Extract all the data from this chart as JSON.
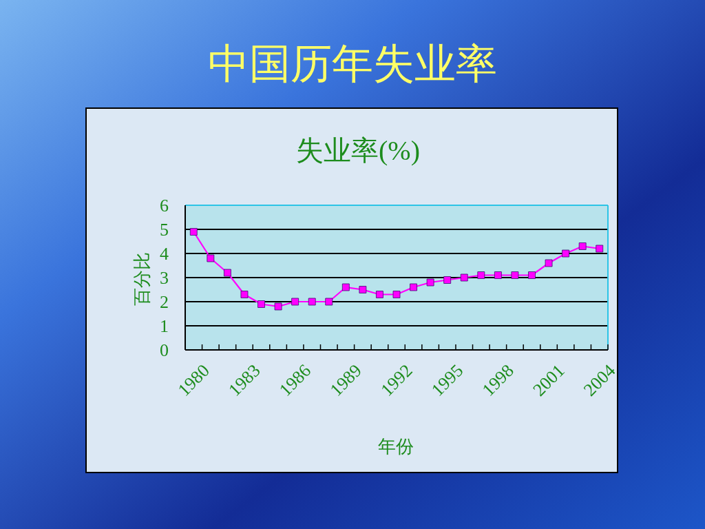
{
  "chart_data": {
    "type": "line",
    "title": "中国历年失业率",
    "subtitle": "失业率(%)",
    "xlabel": "年份",
    "ylabel": "百分比",
    "categories": [
      "1980",
      null,
      null,
      "1983",
      null,
      null,
      "1986",
      null,
      null,
      "1989",
      null,
      null,
      "1992",
      null,
      null,
      "1995",
      null,
      null,
      "1998",
      null,
      null,
      "2001",
      null,
      null,
      "2004"
    ],
    "values": [
      4.9,
      3.8,
      3.2,
      2.3,
      1.9,
      1.8,
      2.0,
      2.0,
      2.0,
      2.6,
      2.5,
      2.3,
      2.3,
      2.6,
      2.8,
      2.9,
      3.0,
      3.1,
      3.1,
      3.1,
      3.1,
      3.6,
      4.0,
      4.3,
      4.2
    ],
    "color": "#ff00ff",
    "ylim": [
      0,
      6
    ],
    "yticks": [
      0,
      1,
      2,
      3,
      4,
      5,
      6
    ],
    "grid": "y",
    "marker": "square",
    "line_style": "solid"
  }
}
